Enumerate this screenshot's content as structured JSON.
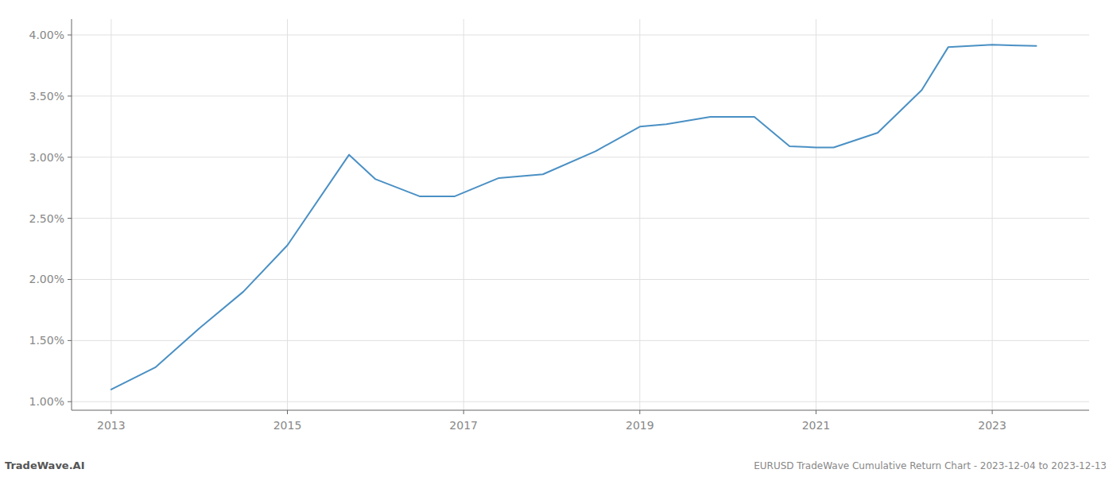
{
  "chart_data": {
    "type": "line",
    "x": [
      2013.0,
      2013.5,
      2014.0,
      2014.5,
      2015.0,
      2015.7,
      2016.0,
      2016.5,
      2016.9,
      2017.4,
      2017.9,
      2018.5,
      2019.0,
      2019.3,
      2019.8,
      2020.3,
      2020.7,
      2021.0,
      2021.2,
      2021.7,
      2022.2,
      2022.5,
      2023.0,
      2023.5
    ],
    "values": [
      1.1,
      1.28,
      1.6,
      1.9,
      2.28,
      3.02,
      2.82,
      2.68,
      2.68,
      2.83,
      2.86,
      3.05,
      3.25,
      3.27,
      3.33,
      3.33,
      3.09,
      3.08,
      3.08,
      3.2,
      3.55,
      3.9,
      3.92,
      3.91
    ],
    "color": "#4a90c4",
    "xlim": [
      2012.55,
      2024.1
    ],
    "ylim": [
      0.93,
      4.13
    ],
    "xticks": [
      2013,
      2015,
      2017,
      2019,
      2021,
      2023
    ],
    "yticks": [
      {
        "value": 1.0,
        "label": "1.00%"
      },
      {
        "value": 1.5,
        "label": "1.50%"
      },
      {
        "value": 2.0,
        "label": "2.00%"
      },
      {
        "value": 2.5,
        "label": "2.50%"
      },
      {
        "value": 3.0,
        "label": "3.00%"
      },
      {
        "value": 3.5,
        "label": "3.50%"
      },
      {
        "value": 4.0,
        "label": "4.00%"
      }
    ],
    "grid": true,
    "annotations": [
      "TradeWave.AI",
      "EURUSD TradeWave Cumulative Return Chart - 2023-12-04 to 2023-12-13"
    ]
  }
}
